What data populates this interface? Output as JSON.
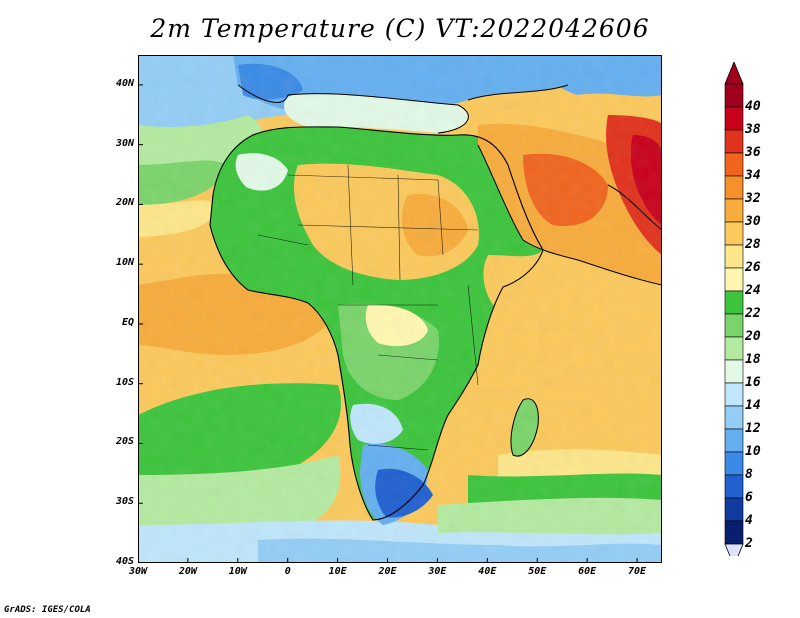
{
  "title": "2m Temperature (C) VT:2022042606",
  "credit": "GrADS: IGES/COLA",
  "map": {
    "lon_range": [
      -30,
      75
    ],
    "lat_range": [
      -40,
      45
    ],
    "lat_ticks": [
      {
        "value": 40,
        "label": "40N"
      },
      {
        "value": 30,
        "label": "30N"
      },
      {
        "value": 20,
        "label": "20N"
      },
      {
        "value": 10,
        "label": "10N"
      },
      {
        "value": 0,
        "label": "EQ"
      },
      {
        "value": -10,
        "label": "10S"
      },
      {
        "value": -20,
        "label": "20S"
      },
      {
        "value": -30,
        "label": "30S"
      },
      {
        "value": -40,
        "label": "40S"
      }
    ],
    "lon_ticks": [
      {
        "value": -30,
        "label": "30W"
      },
      {
        "value": -20,
        "label": "20W"
      },
      {
        "value": -10,
        "label": "10W"
      },
      {
        "value": 0,
        "label": "0"
      },
      {
        "value": 10,
        "label": "10E"
      },
      {
        "value": 20,
        "label": "20E"
      },
      {
        "value": 30,
        "label": "30E"
      },
      {
        "value": 40,
        "label": "40E"
      },
      {
        "value": 50,
        "label": "50E"
      },
      {
        "value": 60,
        "label": "60E"
      },
      {
        "value": 70,
        "label": "70E"
      }
    ]
  },
  "colorbar": {
    "labels": [
      "40",
      "38",
      "36",
      "34",
      "32",
      "30",
      "28",
      "26",
      "24",
      "22",
      "20",
      "18",
      "16",
      "14",
      "12",
      "10",
      "8",
      "6",
      "4",
      "2"
    ],
    "colors": [
      "#a0001e",
      "#c8001c",
      "#e0321c",
      "#f0641e",
      "#f5902a",
      "#f7ac3c",
      "#fbc95c",
      "#fde68a",
      "#fff7b0",
      "#3cc43c",
      "#7ad46a",
      "#b4eaa0",
      "#e2f9e6",
      "#bfe6fb",
      "#94cdf5",
      "#64aff0",
      "#3a8ae6",
      "#2060d0",
      "#103ca0",
      "#0a1e70"
    ]
  }
}
